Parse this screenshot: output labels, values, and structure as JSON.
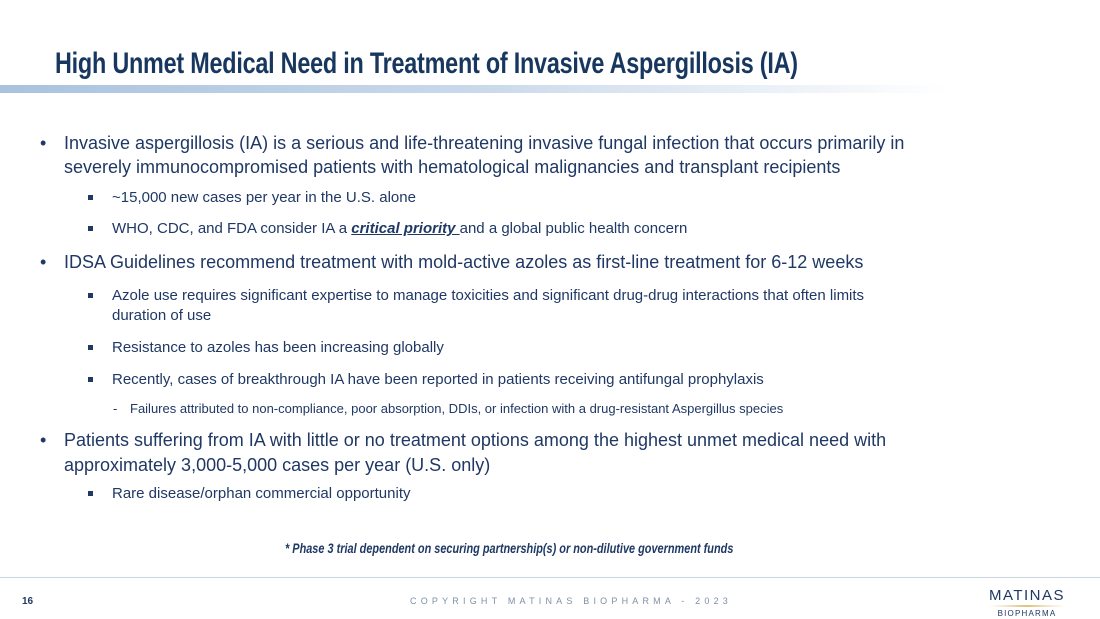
{
  "title": "High Unmet Medical Need in Treatment of Invasive Aspergillosis (IA)",
  "bullets": {
    "b1_line1": "Invasive aspergillosis (IA) is a serious and life-threatening invasive fungal infection that occurs primarily in",
    "b1_line2": "severely immunocompromised patients with hematological malignancies and transplant recipients",
    "b1_s1": "~15,000 new cases per year in the U.S. alone",
    "b1_s2_pre": "WHO, CDC, and FDA consider IA a ",
    "b1_s2_em": "critical priority ",
    "b1_s2_post": "and a global public health concern",
    "b2_line1": "IDSA Guidelines recommend treatment with mold-active azoles as first-line treatment for 6-12 weeks",
    "b2_s1_line1": "Azole use requires significant expertise to manage toxicities and significant drug-drug interactions that often limits",
    "b2_s1_line2": "duration of use",
    "b2_s2": "Resistance to azoles has been increasing globally",
    "b2_s3": "Recently, cases of breakthrough IA have been reported in patients receiving antifungal prophylaxis",
    "b2_s3_sub": "Failures attributed to non-compliance, poor absorption, DDIs, or infection with a drug-resistant Aspergillus species",
    "b3_line1": "Patients suffering from IA with little or no treatment options among the highest unmet medical need with",
    "b3_line2": "approximately 3,000-5,000 cases per year (U.S. only)",
    "b3_s1": "Rare disease/orphan commercial opportunity"
  },
  "footnote": "* Phase 3 trial dependent on securing partnership(s) or non-dilutive government funds",
  "footer": {
    "page": "16",
    "copyright": "COPYRIGHT MATINAS BIOPHARMA - 2023",
    "logo_main": "MATINAS",
    "logo_sub": "BIOPHARMA"
  },
  "bullet_char": "•",
  "dash_char": "-"
}
